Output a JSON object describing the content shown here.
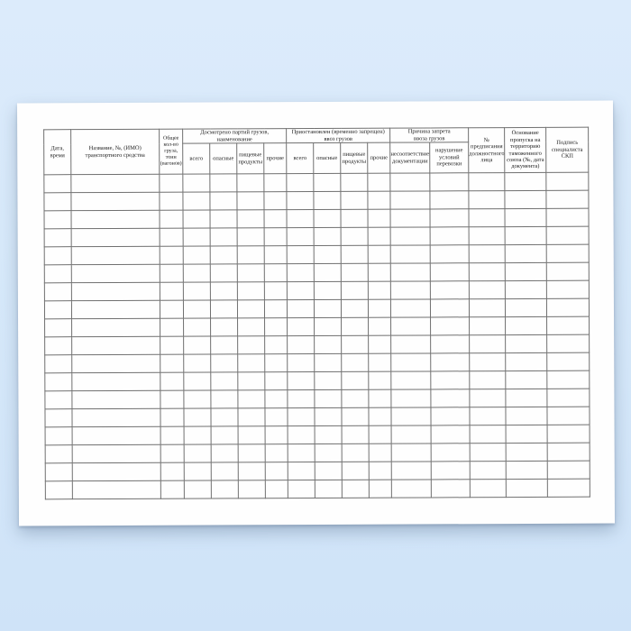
{
  "scene": {
    "background_top_color": "#dcebfb",
    "background_bottom_color": "#cfe3f8",
    "paper_color": "#fefefe",
    "grid_line_color": "#707070",
    "text_color": "#1c1c1c"
  },
  "document": {
    "description_of_content": "blank tabular registration form, Russian language, no title visible",
    "table": {
      "columns": [
        {
          "label": "Дата,\nвремя",
          "width": 30
        },
        {
          "label": "Название, №, (ИМО)\nтранспортного средства",
          "width": 98
        },
        {
          "label": "Общее\nкол-во\nгруза,\nтонн\n(вагонов)",
          "width": 26,
          "small": true
        },
        {
          "label": "Досмотрено партий грузов,\nнаименование",
          "children": [
            {
              "label": "всего",
              "width": 30
            },
            {
              "label": "опасные",
              "width": 30
            },
            {
              "label": "пищевые\nпродукты",
              "width": 30
            },
            {
              "label": "прочие",
              "width": 25
            }
          ]
        },
        {
          "label": "Приостановлен (временно запрещен)\nввоз грузов",
          "children": [
            {
              "label": "всего",
              "width": 30
            },
            {
              "label": "опасные",
              "width": 30
            },
            {
              "label": "пищевые\nпродукты",
              "width": 30
            },
            {
              "label": "прочие",
              "width": 25
            }
          ]
        },
        {
          "label": "Причина запрета\nввоза грузов",
          "children": [
            {
              "label": "несоответствие\nдокументации",
              "width": 44
            },
            {
              "label": "нарушение\nусловий\nперевозки",
              "width": 43
            }
          ]
        },
        {
          "label": "№\nпредписания\nдолжностного\nлица",
          "width": 40
        },
        {
          "label": "Основание\nпропуска на\nтерриторию\nтаможенного\nсоюза (№, дата\nдокумента)",
          "width": 46
        },
        {
          "label": "Подпись\nспециалиста\nСКП",
          "width": 47
        }
      ],
      "body": {
        "row_count": 18,
        "column_count": 16,
        "cell_value": ""
      }
    }
  }
}
